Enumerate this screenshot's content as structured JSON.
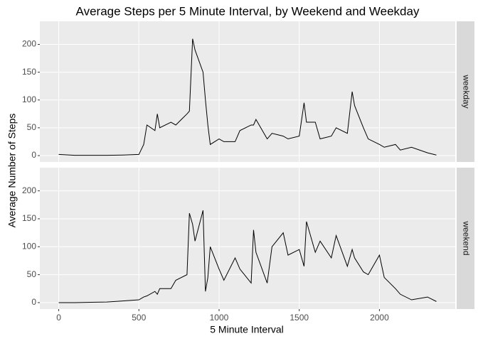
{
  "chart_data": {
    "type": "line",
    "title": "Average Steps per 5 Minute Interval, by Weekend and Weekday",
    "x_label": "5 Minute Interval",
    "y_label": "Average Number of Steps",
    "x": [
      0,
      100,
      200,
      300,
      400,
      500,
      530,
      550,
      600,
      615,
      630,
      700,
      730,
      800,
      815,
      835,
      850,
      900,
      915,
      930,
      945,
      1000,
      1030,
      1100,
      1130,
      1200,
      1215,
      1230,
      1300,
      1330,
      1400,
      1430,
      1500,
      1530,
      1545,
      1600,
      1630,
      1700,
      1730,
      1800,
      1830,
      1845,
      1900,
      1930,
      2000,
      2030,
      2100,
      2130,
      2200,
      2300,
      2355
    ],
    "series": [
      {
        "name": "weekday",
        "color": "#000000",
        "values": [
          2,
          0.5,
          0.5,
          0.5,
          1,
          2,
          20,
          55,
          45,
          75,
          50,
          60,
          55,
          75,
          80,
          210,
          190,
          150,
          100,
          55,
          20,
          30,
          25,
          25,
          45,
          55,
          55,
          65,
          30,
          40,
          35,
          30,
          35,
          95,
          60,
          60,
          30,
          35,
          50,
          40,
          115,
          90,
          50,
          30,
          20,
          15,
          20,
          10,
          15,
          5,
          1
        ]
      },
      {
        "name": "weekend",
        "color": "#000000",
        "values": [
          0,
          0,
          0.5,
          1,
          3,
          5,
          10,
          12,
          20,
          15,
          25,
          25,
          40,
          50,
          160,
          140,
          110,
          165,
          20,
          45,
          100,
          60,
          40,
          80,
          60,
          35,
          130,
          90,
          35,
          100,
          125,
          85,
          95,
          65,
          145,
          90,
          110,
          80,
          120,
          65,
          95,
          80,
          55,
          50,
          85,
          45,
          25,
          15,
          5,
          10,
          2
        ]
      }
    ],
    "xlim": [
      -117.75,
      2472.75
    ],
    "xticks": [
      0,
      500,
      1000,
      1500,
      2000
    ],
    "ylim": [
      -11.5,
      241.5
    ],
    "yticks": [
      0,
      50,
      100,
      150,
      200
    ],
    "grid": true
  }
}
